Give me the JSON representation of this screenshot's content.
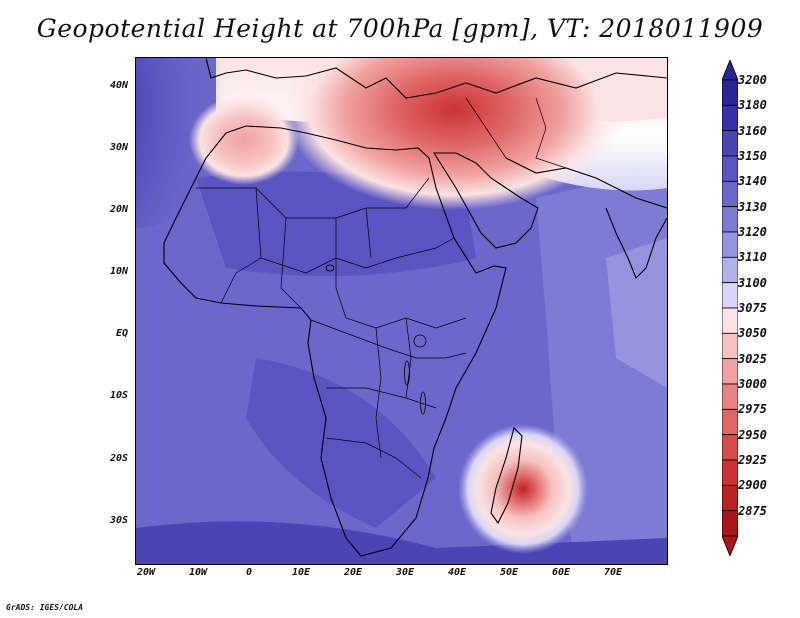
{
  "title": "Geopotential Height at 700hPa [gpm], VT: 2018011909",
  "credit": "GrADS: IGES/COLA",
  "lat_ticks": [
    "40N",
    "30N",
    "20N",
    "10N",
    "EQ",
    "10S",
    "20S",
    "30S"
  ],
  "lon_ticks": [
    "20W",
    "10W",
    "0",
    "10E",
    "20E",
    "30E",
    "40E",
    "50E",
    "60E",
    "70E"
  ],
  "colorbar": {
    "levels": [
      "3200",
      "3180",
      "3160",
      "3150",
      "3140",
      "3130",
      "3120",
      "3110",
      "3100",
      "3075",
      "3050",
      "3025",
      "3000",
      "2975",
      "2950",
      "2925",
      "2900",
      "2875"
    ],
    "colors": [
      "#2b2596",
      "#3830a8",
      "#4a44b5",
      "#5a55c2",
      "#6b67cb",
      "#7e7bd5",
      "#9693df",
      "#b2b0ea",
      "#d8d6f5",
      "#fbe3e3",
      "#f6c1c1",
      "#f0a2a2",
      "#e88383",
      "#e06666",
      "#d84c4c",
      "#cc3333",
      "#bb2323",
      "#aa1515"
    ]
  },
  "map": {
    "lon_range": [
      -22,
      80
    ],
    "lat_range": [
      -37,
      45
    ],
    "features": [
      {
        "name": "high-west-atlantic",
        "lon": -22,
        "lat": 37,
        "value": 3180
      },
      {
        "name": "low-northwest-africa",
        "lon": -1,
        "lat": 31,
        "value": 3050
      },
      {
        "name": "low-middle-east",
        "lon": 38,
        "lat": 36,
        "value": 2925
      },
      {
        "name": "low-mozambique-channel",
        "lon": 53,
        "lat": -25,
        "value": 2900
      }
    ]
  }
}
